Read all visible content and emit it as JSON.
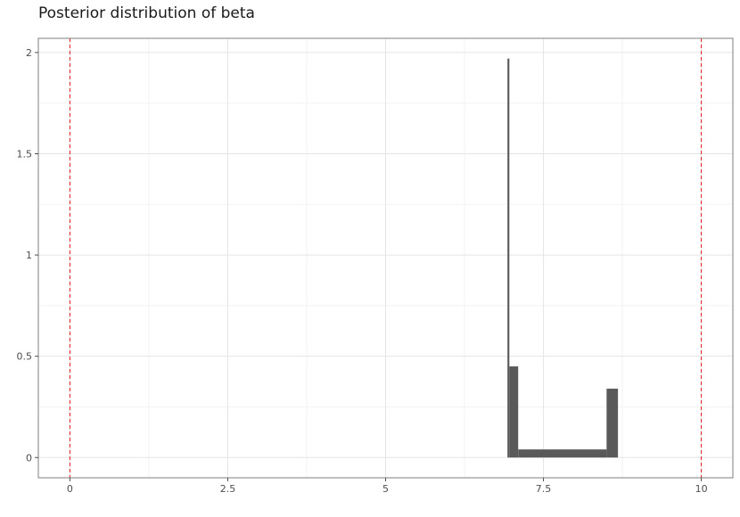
{
  "chart_data": {
    "type": "histogram",
    "title": "Posterior distribution of beta",
    "xlabel": "",
    "ylabel": "",
    "xlim": [
      -0.5,
      10.5
    ],
    "ylim": [
      -0.1,
      2.07
    ],
    "x_ticks": [
      {
        "value": 0,
        "label": "0"
      },
      {
        "value": 2.5,
        "label": "2.5"
      },
      {
        "value": 5,
        "label": "5"
      },
      {
        "value": 7.5,
        "label": "7.5"
      },
      {
        "value": 10,
        "label": "10"
      }
    ],
    "y_ticks": [
      {
        "value": 0,
        "label": "0"
      },
      {
        "value": 0.5,
        "label": "0.5"
      },
      {
        "value": 1,
        "label": "1"
      },
      {
        "value": 1.5,
        "label": "1.5"
      },
      {
        "value": 2,
        "label": "2"
      }
    ],
    "bars": [
      {
        "x0": 6.93,
        "x1": 6.96,
        "density": 1.97
      },
      {
        "x0": 6.96,
        "x1": 7.1,
        "density": 0.45
      },
      {
        "x0": 7.1,
        "x1": 8.5,
        "density": 0.04
      },
      {
        "x0": 8.5,
        "x1": 8.68,
        "density": 0.34
      }
    ],
    "reference_lines": [
      {
        "x": 0,
        "color": "#e41a1c",
        "style": "dashed"
      },
      {
        "x": 10,
        "color": "#e41a1c",
        "style": "dashed"
      }
    ],
    "bar_color": "#595959",
    "grid": true,
    "legend": "none"
  }
}
